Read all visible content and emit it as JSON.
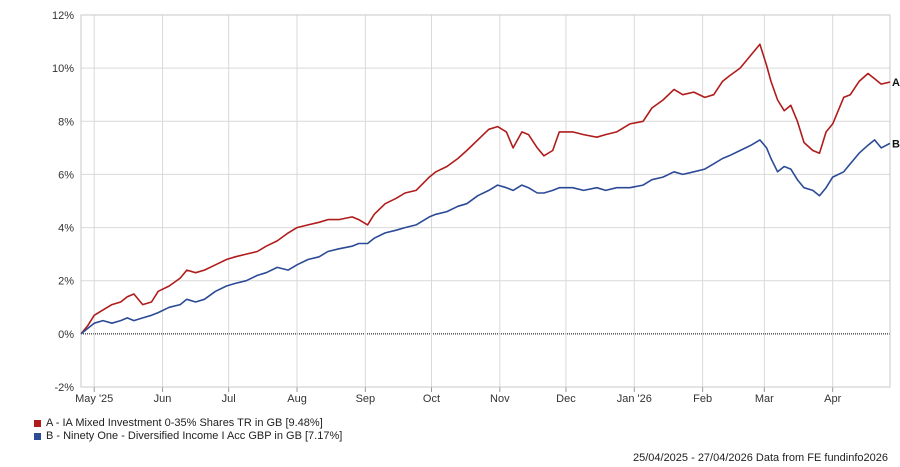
{
  "chart_data": {
    "type": "line",
    "ylim": [
      -2,
      12
    ],
    "y_ticks": [
      {
        "value": -2,
        "label": "-2%"
      },
      {
        "value": 0,
        "label": "0%"
      },
      {
        "value": 2,
        "label": "2%"
      },
      {
        "value": 4,
        "label": "4%"
      },
      {
        "value": 6,
        "label": "6%"
      },
      {
        "value": 8,
        "label": "8%"
      },
      {
        "value": 10,
        "label": "10%"
      },
      {
        "value": 12,
        "label": "12%"
      }
    ],
    "x_range": [
      "2025-04-25",
      "2026-04-27"
    ],
    "x_ticks": [
      {
        "date": "2025-05-01",
        "label": "May '25"
      },
      {
        "date": "2025-06-01",
        "label": "Jun"
      },
      {
        "date": "2025-07-01",
        "label": "Jul"
      },
      {
        "date": "2025-08-01",
        "label": "Aug"
      },
      {
        "date": "2025-09-01",
        "label": "Sep"
      },
      {
        "date": "2025-10-01",
        "label": "Oct"
      },
      {
        "date": "2025-11-01",
        "label": "Nov"
      },
      {
        "date": "2025-12-01",
        "label": "Dec"
      },
      {
        "date": "2026-01-01",
        "label": "Jan '26"
      },
      {
        "date": "2026-02-01",
        "label": "Feb"
      },
      {
        "date": "2026-03-01",
        "label": "Mar"
      },
      {
        "date": "2026-04-01",
        "label": "Apr"
      }
    ],
    "grid": true,
    "zero_line": "dotted",
    "legend_placement": "bottom-left",
    "series": [
      {
        "name": "A - IA Mixed Investment 0-35% Shares TR in GB [9.48%]",
        "end_label": "A",
        "color": "#b01c1c",
        "points": [
          [
            "2025-04-25",
            0.0
          ],
          [
            "2025-04-28",
            0.3
          ],
          [
            "2025-05-01",
            0.7
          ],
          [
            "2025-05-05",
            0.9
          ],
          [
            "2025-05-09",
            1.1
          ],
          [
            "2025-05-13",
            1.2
          ],
          [
            "2025-05-16",
            1.4
          ],
          [
            "2025-05-19",
            1.5
          ],
          [
            "2025-05-23",
            1.1
          ],
          [
            "2025-05-27",
            1.2
          ],
          [
            "2025-05-30",
            1.6
          ],
          [
            "2025-06-04",
            1.8
          ],
          [
            "2025-06-09",
            2.1
          ],
          [
            "2025-06-12",
            2.4
          ],
          [
            "2025-06-16",
            2.3
          ],
          [
            "2025-06-20",
            2.4
          ],
          [
            "2025-06-25",
            2.6
          ],
          [
            "2025-06-30",
            2.8
          ],
          [
            "2025-07-04",
            2.9
          ],
          [
            "2025-07-09",
            3.0
          ],
          [
            "2025-07-14",
            3.1
          ],
          [
            "2025-07-18",
            3.3
          ],
          [
            "2025-07-23",
            3.5
          ],
          [
            "2025-07-28",
            3.8
          ],
          [
            "2025-08-01",
            4.0
          ],
          [
            "2025-08-06",
            4.1
          ],
          [
            "2025-08-11",
            4.2
          ],
          [
            "2025-08-15",
            4.3
          ],
          [
            "2025-08-20",
            4.3
          ],
          [
            "2025-08-26",
            4.4
          ],
          [
            "2025-08-29",
            4.3
          ],
          [
            "2025-09-02",
            4.1
          ],
          [
            "2025-09-05",
            4.5
          ],
          [
            "2025-09-10",
            4.9
          ],
          [
            "2025-09-15",
            5.1
          ],
          [
            "2025-09-19",
            5.3
          ],
          [
            "2025-09-24",
            5.4
          ],
          [
            "2025-09-30",
            5.9
          ],
          [
            "2025-10-03",
            6.1
          ],
          [
            "2025-10-08",
            6.3
          ],
          [
            "2025-10-13",
            6.6
          ],
          [
            "2025-10-17",
            6.9
          ],
          [
            "2025-10-22",
            7.3
          ],
          [
            "2025-10-27",
            7.7
          ],
          [
            "2025-10-31",
            7.8
          ],
          [
            "2025-11-04",
            7.6
          ],
          [
            "2025-11-07",
            7.0
          ],
          [
            "2025-11-11",
            7.6
          ],
          [
            "2025-11-14",
            7.5
          ],
          [
            "2025-11-18",
            7.0
          ],
          [
            "2025-11-21",
            6.7
          ],
          [
            "2025-11-25",
            6.9
          ],
          [
            "2025-11-28",
            7.6
          ],
          [
            "2025-12-04",
            7.6
          ],
          [
            "2025-12-09",
            7.5
          ],
          [
            "2025-12-15",
            7.4
          ],
          [
            "2025-12-19",
            7.5
          ],
          [
            "2025-12-24",
            7.6
          ],
          [
            "2025-12-30",
            7.9
          ],
          [
            "2026-01-05",
            8.0
          ],
          [
            "2026-01-09",
            8.5
          ],
          [
            "2026-01-14",
            8.8
          ],
          [
            "2026-01-19",
            9.2
          ],
          [
            "2026-01-23",
            9.0
          ],
          [
            "2026-01-28",
            9.1
          ],
          [
            "2026-02-02",
            8.9
          ],
          [
            "2026-02-06",
            9.0
          ],
          [
            "2026-02-10",
            9.5
          ],
          [
            "2026-02-13",
            9.7
          ],
          [
            "2026-02-18",
            10.0
          ],
          [
            "2026-02-23",
            10.5
          ],
          [
            "2026-02-27",
            10.9
          ],
          [
            "2026-03-02",
            10.1
          ],
          [
            "2026-03-04",
            9.5
          ],
          [
            "2026-03-07",
            8.8
          ],
          [
            "2026-03-10",
            8.4
          ],
          [
            "2026-03-13",
            8.6
          ],
          [
            "2026-03-16",
            8.0
          ],
          [
            "2026-03-19",
            7.2
          ],
          [
            "2026-03-23",
            6.9
          ],
          [
            "2026-03-26",
            6.8
          ],
          [
            "2026-03-29",
            7.6
          ],
          [
            "2026-04-01",
            7.9
          ],
          [
            "2026-04-06",
            8.9
          ],
          [
            "2026-04-09",
            9.0
          ],
          [
            "2026-04-13",
            9.5
          ],
          [
            "2026-04-17",
            9.8
          ],
          [
            "2026-04-20",
            9.6
          ],
          [
            "2026-04-23",
            9.4
          ],
          [
            "2026-04-27",
            9.48
          ]
        ]
      },
      {
        "name": "B - Ninety One - Diversified Income I Acc GBP in GB [7.17%]",
        "end_label": "B",
        "color": "#2c4a96",
        "points": [
          [
            "2025-04-25",
            0.0
          ],
          [
            "2025-04-28",
            0.2
          ],
          [
            "2025-05-01",
            0.4
          ],
          [
            "2025-05-05",
            0.5
          ],
          [
            "2025-05-09",
            0.4
          ],
          [
            "2025-05-13",
            0.5
          ],
          [
            "2025-05-16",
            0.6
          ],
          [
            "2025-05-19",
            0.5
          ],
          [
            "2025-05-23",
            0.6
          ],
          [
            "2025-05-27",
            0.7
          ],
          [
            "2025-05-30",
            0.8
          ],
          [
            "2025-06-04",
            1.0
          ],
          [
            "2025-06-09",
            1.1
          ],
          [
            "2025-06-12",
            1.3
          ],
          [
            "2025-06-16",
            1.2
          ],
          [
            "2025-06-20",
            1.3
          ],
          [
            "2025-06-25",
            1.6
          ],
          [
            "2025-06-30",
            1.8
          ],
          [
            "2025-07-04",
            1.9
          ],
          [
            "2025-07-09",
            2.0
          ],
          [
            "2025-07-14",
            2.2
          ],
          [
            "2025-07-18",
            2.3
          ],
          [
            "2025-07-23",
            2.5
          ],
          [
            "2025-07-28",
            2.4
          ],
          [
            "2025-08-01",
            2.6
          ],
          [
            "2025-08-06",
            2.8
          ],
          [
            "2025-08-11",
            2.9
          ],
          [
            "2025-08-15",
            3.1
          ],
          [
            "2025-08-20",
            3.2
          ],
          [
            "2025-08-26",
            3.3
          ],
          [
            "2025-08-29",
            3.4
          ],
          [
            "2025-09-02",
            3.4
          ],
          [
            "2025-09-05",
            3.6
          ],
          [
            "2025-09-10",
            3.8
          ],
          [
            "2025-09-15",
            3.9
          ],
          [
            "2025-09-19",
            4.0
          ],
          [
            "2025-09-24",
            4.1
          ],
          [
            "2025-09-30",
            4.4
          ],
          [
            "2025-10-03",
            4.5
          ],
          [
            "2025-10-08",
            4.6
          ],
          [
            "2025-10-13",
            4.8
          ],
          [
            "2025-10-17",
            4.9
          ],
          [
            "2025-10-22",
            5.2
          ],
          [
            "2025-10-27",
            5.4
          ],
          [
            "2025-10-31",
            5.6
          ],
          [
            "2025-11-04",
            5.5
          ],
          [
            "2025-11-07",
            5.4
          ],
          [
            "2025-11-11",
            5.6
          ],
          [
            "2025-11-14",
            5.5
          ],
          [
            "2025-11-18",
            5.3
          ],
          [
            "2025-11-21",
            5.3
          ],
          [
            "2025-11-25",
            5.4
          ],
          [
            "2025-11-28",
            5.5
          ],
          [
            "2025-12-04",
            5.5
          ],
          [
            "2025-12-09",
            5.4
          ],
          [
            "2025-12-15",
            5.5
          ],
          [
            "2025-12-19",
            5.4
          ],
          [
            "2025-12-24",
            5.5
          ],
          [
            "2025-12-30",
            5.5
          ],
          [
            "2026-01-05",
            5.6
          ],
          [
            "2026-01-09",
            5.8
          ],
          [
            "2026-01-14",
            5.9
          ],
          [
            "2026-01-19",
            6.1
          ],
          [
            "2026-01-23",
            6.0
          ],
          [
            "2026-01-28",
            6.1
          ],
          [
            "2026-02-02",
            6.2
          ],
          [
            "2026-02-06",
            6.4
          ],
          [
            "2026-02-10",
            6.6
          ],
          [
            "2026-02-13",
            6.7
          ],
          [
            "2026-02-18",
            6.9
          ],
          [
            "2026-02-23",
            7.1
          ],
          [
            "2026-02-27",
            7.3
          ],
          [
            "2026-03-02",
            7.0
          ],
          [
            "2026-03-04",
            6.6
          ],
          [
            "2026-03-07",
            6.1
          ],
          [
            "2026-03-10",
            6.3
          ],
          [
            "2026-03-13",
            6.2
          ],
          [
            "2026-03-16",
            5.8
          ],
          [
            "2026-03-19",
            5.5
          ],
          [
            "2026-03-23",
            5.4
          ],
          [
            "2026-03-26",
            5.2
          ],
          [
            "2026-03-29",
            5.5
          ],
          [
            "2026-04-01",
            5.9
          ],
          [
            "2026-04-06",
            6.1
          ],
          [
            "2026-04-09",
            6.4
          ],
          [
            "2026-04-13",
            6.8
          ],
          [
            "2026-04-17",
            7.1
          ],
          [
            "2026-04-20",
            7.3
          ],
          [
            "2026-04-23",
            7.0
          ],
          [
            "2026-04-27",
            7.17
          ]
        ]
      }
    ]
  },
  "footer": "25/04/2025 - 27/04/2026 Data from FE fundinfo2026"
}
